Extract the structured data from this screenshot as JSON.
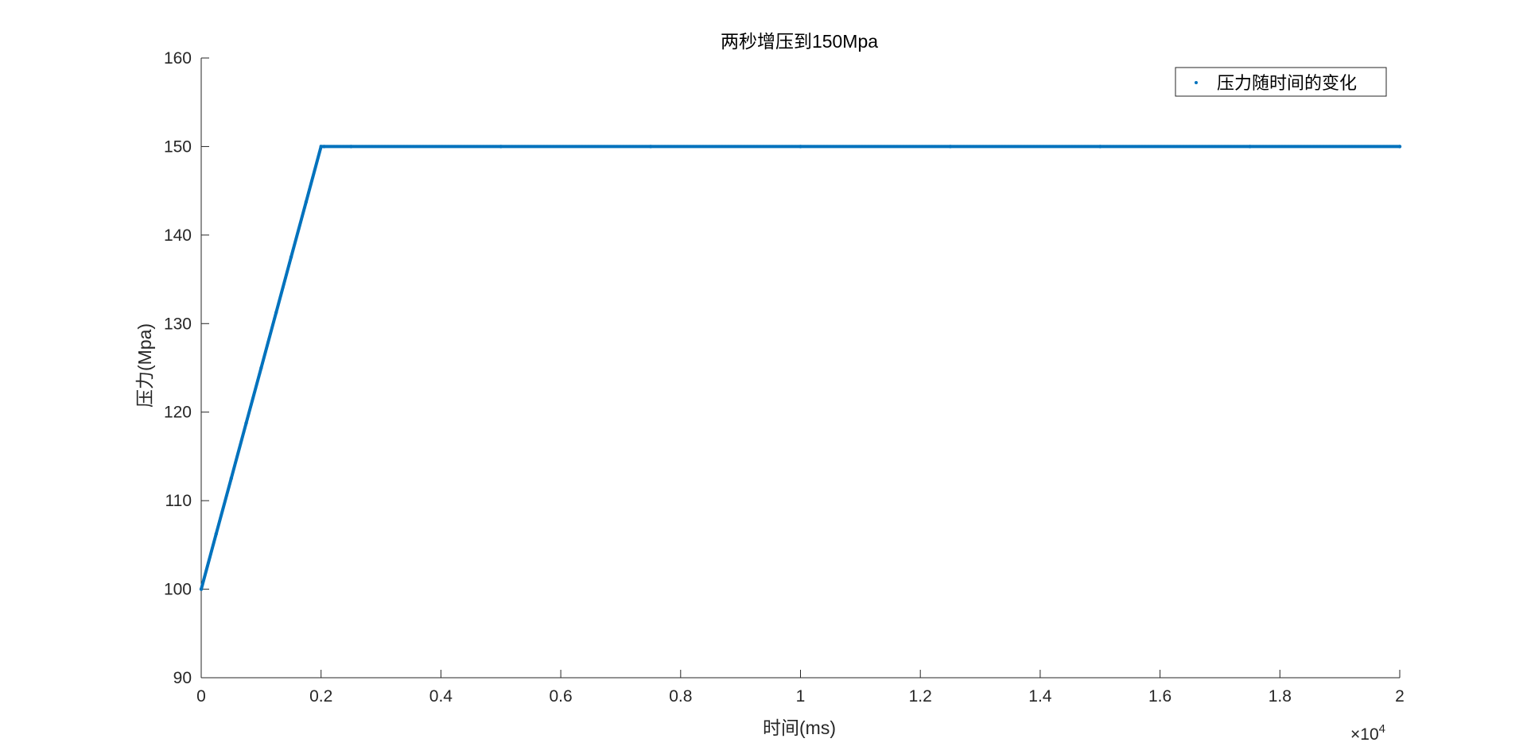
{
  "chart_data": {
    "type": "scatter",
    "title": "两秒增压到150Mpa",
    "xlabel": "时间(ms)",
    "ylabel": "压力(Mpa)",
    "xlim": [
      0,
      20000
    ],
    "ylim": [
      90,
      160
    ],
    "x_exponent_label": "×10",
    "x_exponent_power": "4",
    "x_ticks": [
      0,
      2000,
      4000,
      6000,
      8000,
      10000,
      12000,
      14000,
      16000,
      18000,
      20000
    ],
    "x_tick_labels": [
      "0",
      "0.2",
      "0.4",
      "0.6",
      "0.8",
      "1",
      "1.2",
      "1.4",
      "1.6",
      "1.8",
      "2"
    ],
    "y_ticks": [
      90,
      100,
      110,
      120,
      130,
      140,
      150,
      160
    ],
    "y_tick_labels": [
      "90",
      "100",
      "110",
      "120",
      "130",
      "140",
      "150",
      "160"
    ],
    "grid": false,
    "legend_position": "top-right",
    "series": [
      {
        "name": "压力随时间的变化",
        "color": "#0072BD",
        "marker": "dot",
        "x": [
          0,
          250,
          500,
          750,
          1000,
          1250,
          1500,
          1750,
          2000,
          2050,
          2500,
          5000,
          7500,
          10000,
          12500,
          15000,
          17500,
          20000
        ],
        "y": [
          100,
          106.25,
          112.5,
          118.75,
          125,
          131.25,
          137.5,
          143.75,
          150,
          150,
          150,
          150,
          150,
          150,
          150,
          150,
          150,
          150
        ]
      }
    ]
  }
}
